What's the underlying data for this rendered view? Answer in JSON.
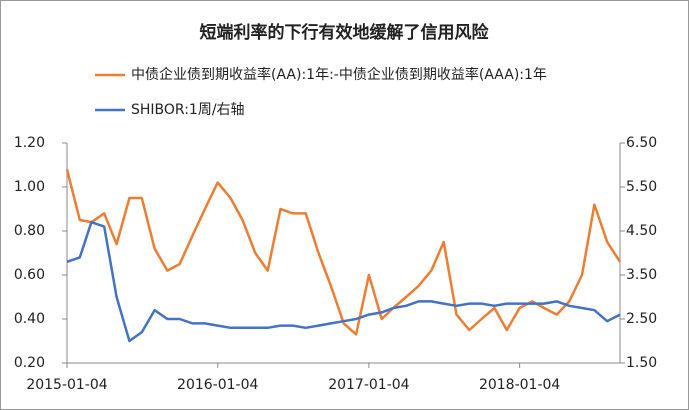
{
  "chart_data": {
    "type": "line",
    "title": "短端利率的下行有效地缓解了信用风险",
    "x": [
      "2015-01-04",
      "2015-02-04",
      "2015-03-04",
      "2015-04-04",
      "2015-05-04",
      "2015-06-04",
      "2015-07-04",
      "2015-08-04",
      "2015-09-04",
      "2015-10-04",
      "2015-11-04",
      "2015-12-04",
      "2016-01-04",
      "2016-02-04",
      "2016-03-04",
      "2016-04-04",
      "2016-05-04",
      "2016-06-04",
      "2016-07-04",
      "2016-08-04",
      "2016-09-04",
      "2016-10-04",
      "2016-11-04",
      "2016-12-04",
      "2017-01-04",
      "2017-02-04",
      "2017-03-04",
      "2017-04-04",
      "2017-05-04",
      "2017-06-04",
      "2017-07-04",
      "2017-08-04",
      "2017-09-04",
      "2017-10-04",
      "2017-11-04",
      "2017-12-04",
      "2018-01-04",
      "2018-02-04",
      "2018-03-04",
      "2018-04-04",
      "2018-05-04",
      "2018-06-04",
      "2018-07-04",
      "2018-08-04",
      "2018-09-04"
    ],
    "series": [
      {
        "name": "中债企业债到期收益率(AA):1年:-中债企业债到期收益率(AAA):1年",
        "color": "#ed7d31",
        "values": [
          1.08,
          0.85,
          0.84,
          0.88,
          0.74,
          0.95,
          0.95,
          0.72,
          0.62,
          0.65,
          0.78,
          0.9,
          1.02,
          0.95,
          0.85,
          0.7,
          0.62,
          0.9,
          0.88,
          0.88,
          0.7,
          0.55,
          0.38,
          0.33,
          0.6,
          0.4,
          0.45,
          0.5,
          0.55,
          0.62,
          0.75,
          0.42,
          0.35,
          0.4,
          0.45,
          0.35,
          0.45,
          0.48,
          0.45,
          0.42,
          0.48,
          0.6,
          0.92,
          0.75,
          0.66
        ]
      },
      {
        "name": "SHIBOR:1周/右轴",
        "color": "#4472c4",
        "axis": "y2",
        "values": [
          3.8,
          3.9,
          4.7,
          4.6,
          3.0,
          2.0,
          2.2,
          2.7,
          2.5,
          2.5,
          2.4,
          2.4,
          2.35,
          2.3,
          2.3,
          2.3,
          2.3,
          2.35,
          2.35,
          2.3,
          2.35,
          2.4,
          2.45,
          2.5,
          2.6,
          2.65,
          2.75,
          2.8,
          2.9,
          2.9,
          2.85,
          2.8,
          2.85,
          2.85,
          2.8,
          2.85,
          2.85,
          2.85,
          2.85,
          2.9,
          2.8,
          2.75,
          2.7,
          2.45,
          2.6
        ]
      }
    ],
    "xlim": [
      "2015-01-04",
      "2018-09-04"
    ],
    "xticks": [
      "2015-01-04",
      "2016-01-04",
      "2017-01-04",
      "2018-01-04"
    ],
    "ylim": [
      0.2,
      1.2
    ],
    "yticks": [
      {
        "value": 0.2,
        "label": "0.20"
      },
      {
        "value": 0.4,
        "label": "0.40"
      },
      {
        "value": 0.6,
        "label": "0.60"
      },
      {
        "value": 0.8,
        "label": "0.80"
      },
      {
        "value": 1.0,
        "label": "1.00"
      },
      {
        "value": 1.2,
        "label": "1.20"
      }
    ],
    "y2lim": [
      1.5,
      6.5
    ],
    "y2ticks": [
      {
        "value": 1.5,
        "label": "1.50"
      },
      {
        "value": 2.5,
        "label": "2.50"
      },
      {
        "value": 3.5,
        "label": "3.50"
      },
      {
        "value": 4.5,
        "label": "4.50"
      },
      {
        "value": 5.5,
        "label": "5.50"
      },
      {
        "value": 6.5,
        "label": "6.50"
      }
    ],
    "grid": false
  }
}
